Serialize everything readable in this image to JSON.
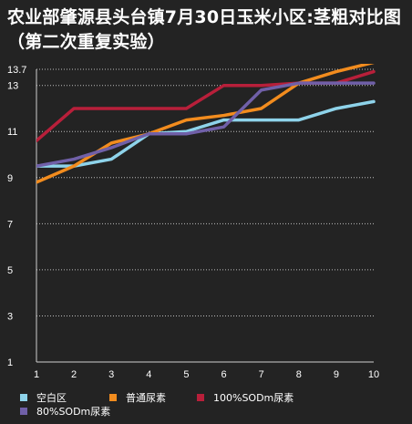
{
  "chart_data": {
    "type": "line",
    "title": "农业部肇源县头台镇7月30日玉米小区:茎粗对比图（第二次重复实验）",
    "x": [
      1,
      2,
      3,
      4,
      5,
      6,
      7,
      8,
      9,
      10
    ],
    "yticks": [
      1,
      3,
      5,
      7,
      9,
      11,
      13,
      13.7
    ],
    "ylim": [
      1,
      13.7
    ],
    "xlim": [
      1,
      10
    ],
    "grid": "horizontal-dotted",
    "legend_position": "bottom",
    "series": [
      {
        "name": "空白区",
        "color": "#8ed3ea",
        "values": [
          9.5,
          9.5,
          9.8,
          10.9,
          11.0,
          11.5,
          11.5,
          11.5,
          12.0,
          12.3
        ]
      },
      {
        "name": "普通尿素",
        "color": "#f28c1e",
        "values": [
          8.8,
          9.5,
          10.5,
          10.9,
          11.5,
          11.7,
          12.0,
          13.1,
          13.6,
          14.0
        ]
      },
      {
        "name": "100%SODm尿素",
        "color": "#b81f3a",
        "values": [
          10.6,
          12.0,
          12.0,
          12.0,
          12.0,
          13.0,
          13.0,
          13.1,
          13.1,
          13.6
        ]
      },
      {
        "name": "80%SODm尿素",
        "color": "#7060a8",
        "values": [
          9.5,
          9.8,
          10.3,
          10.9,
          10.9,
          11.2,
          12.8,
          13.1,
          13.1,
          13.1
        ]
      }
    ]
  }
}
